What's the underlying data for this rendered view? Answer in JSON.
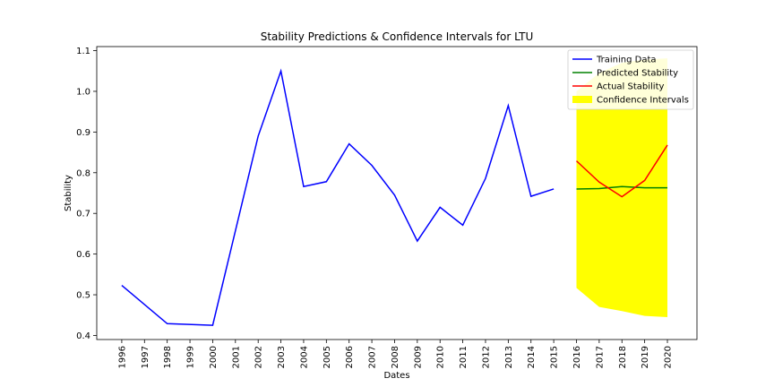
{
  "chart_data": {
    "type": "line",
    "title": "Stability Predictions & Confidence Intervals for LTU",
    "xlabel": "Dates",
    "ylabel": "Stability",
    "ylim": [
      0.39,
      1.11
    ],
    "y_ticks": [
      0.4,
      0.5,
      0.6,
      0.7,
      0.8,
      0.9,
      1.0,
      1.1
    ],
    "y_tick_labels": [
      "0.4",
      "0.5",
      "0.6",
      "0.7",
      "0.8",
      "0.9",
      "1.0",
      "1.1"
    ],
    "x_ticks": [
      "1996",
      "1997",
      "1998",
      "1999",
      "2000",
      "2001",
      "2002",
      "2003",
      "2004",
      "2005",
      "2006",
      "2007",
      "2008",
      "2009",
      "2010",
      "2011",
      "2012",
      "2013",
      "2014",
      "2015",
      "2016",
      "2017",
      "2018",
      "2019",
      "2020"
    ],
    "xlim": [
      1994.9,
      2021.3
    ],
    "grid": false,
    "legend_position": "top-right",
    "series": [
      {
        "name": "Training Data",
        "color": "#0000ff",
        "x": [
          1996,
          1998,
          2000,
          2002,
          2003,
          2004,
          2005,
          2006,
          2007,
          2008,
          2009,
          2010,
          2011,
          2012,
          2013,
          2014,
          2015
        ],
        "y": [
          0.523,
          0.429,
          0.425,
          0.89,
          1.05,
          0.766,
          0.778,
          0.871,
          0.818,
          0.745,
          0.632,
          0.715,
          0.671,
          0.786,
          0.965,
          0.742,
          0.76
        ]
      },
      {
        "name": "Predicted Stability",
        "color": "#008000",
        "x": [
          2016,
          2017,
          2018,
          2019,
          2020
        ],
        "y": [
          0.76,
          0.761,
          0.766,
          0.763,
          0.763
        ]
      },
      {
        "name": "Actual Stability",
        "color": "#ff0000",
        "x": [
          2016,
          2017,
          2018,
          2019,
          2020
        ],
        "y": [
          0.829,
          0.777,
          0.741,
          0.781,
          0.868
        ]
      }
    ],
    "confidence_interval": {
      "name": "Confidence Intervals",
      "color": "#ffff00",
      "x": [
        2016,
        2017,
        2018,
        2019,
        2020
      ],
      "lower": [
        0.517,
        0.47,
        0.46,
        0.448,
        0.445
      ],
      "upper": [
        1.0,
        1.045,
        1.07,
        1.078,
        1.081
      ]
    }
  }
}
